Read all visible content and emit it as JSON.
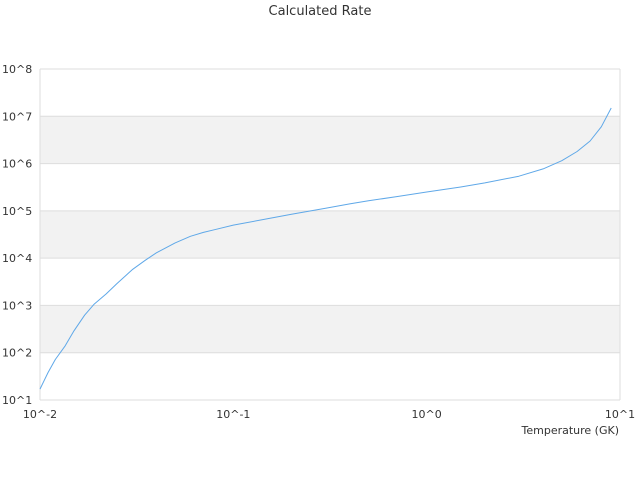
{
  "chart_data": {
    "type": "line",
    "title": "Calculated Rate",
    "xlabel": "Temperature (GK)",
    "ylabel": "",
    "xscale": "log",
    "yscale": "log",
    "xlim": [
      0.01,
      10
    ],
    "ylim": [
      10,
      100000000
    ],
    "x_tick_labels": [
      "10^-2",
      "10^-1",
      "10^0",
      "10^1"
    ],
    "y_tick_labels": [
      "10^1",
      "10^2",
      "10^3",
      "10^4",
      "10^5",
      "10^6",
      "10^7",
      "10^8"
    ],
    "band_fill": "alternating",
    "grid": false,
    "legend": "none",
    "series": [
      {
        "color": "#5fa8e8",
        "x": [
          0.01,
          0.011,
          0.012,
          0.0135,
          0.015,
          0.017,
          0.019,
          0.022,
          0.025,
          0.03,
          0.035,
          0.04,
          0.05,
          0.06,
          0.07,
          0.08,
          0.1,
          0.15,
          0.2,
          0.3,
          0.4,
          0.5,
          0.7,
          1.0,
          1.5,
          2.0,
          3.0,
          4.0,
          5.0,
          6.0,
          7.0,
          8.0,
          9.0
        ],
        "y": [
          17,
          38,
          72,
          140,
          290,
          620,
          1050,
          1750,
          2900,
          5700,
          9000,
          13000,
          21000,
          29000,
          35000,
          40000,
          50000,
          68000,
          85000,
          113000,
          140000,
          163000,
          200000,
          250000,
          320000,
          390000,
          540000,
          770000,
          1150000,
          1800000,
          3000000,
          6000000,
          15000000
        ]
      }
    ]
  },
  "colors": {
    "line": "#5fa8e8",
    "band": "#f2f2f2",
    "band_border": "#dddddd"
  }
}
